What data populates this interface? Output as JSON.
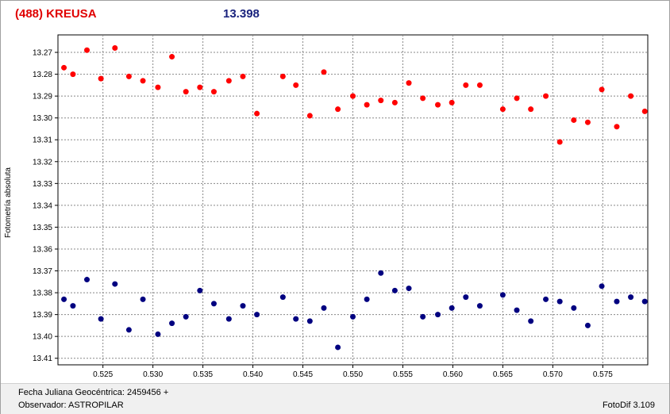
{
  "header": {
    "object_name": "(488) KREUSA",
    "mean_magnitude": "13.398"
  },
  "footer": {
    "jd_label": "Fecha Juliana Geocéntrica: 2459456 +",
    "observer_label": "Observador: ASTROPILAR",
    "software": "FotoDif 3.109"
  },
  "chart_data": {
    "type": "scatter",
    "title": "",
    "xlabel": "",
    "ylabel": "Fotometría absoluta",
    "xlim": [
      0.5205,
      0.5795
    ],
    "ylim": [
      13.262,
      13.413
    ],
    "y_inverted": true,
    "grid": true,
    "x_ticks": [
      "0.525",
      "0.530",
      "0.535",
      "0.540",
      "0.545",
      "0.550",
      "0.555",
      "0.560",
      "0.565",
      "0.570",
      "0.575"
    ],
    "y_ticks": [
      "13.27",
      "13.28",
      "13.29",
      "13.30",
      "13.31",
      "13.32",
      "13.33",
      "13.34",
      "13.35",
      "13.36",
      "13.37",
      "13.38",
      "13.39",
      "13.40",
      "13.41"
    ],
    "series": [
      {
        "color": "#ff0000",
        "x": [
          0.5211,
          0.522,
          0.5234,
          0.5248,
          0.5262,
          0.5276,
          0.529,
          0.5305,
          0.5319,
          0.5333,
          0.5347,
          0.5361,
          0.5376,
          0.539,
          0.5404,
          0.543,
          0.5443,
          0.5457,
          0.5471,
          0.5485,
          0.55,
          0.5514,
          0.5528,
          0.5542,
          0.5556,
          0.557,
          0.5585,
          0.5599,
          0.5613,
          0.5627,
          0.565,
          0.5664,
          0.5678,
          0.5693,
          0.5707,
          0.5721,
          0.5735,
          0.5749,
          0.5764,
          0.5778,
          0.5792
        ],
        "y": [
          13.277,
          13.28,
          13.269,
          13.282,
          13.268,
          13.281,
          13.283,
          13.286,
          13.272,
          13.288,
          13.286,
          13.288,
          13.283,
          13.281,
          13.298,
          13.281,
          13.285,
          13.299,
          13.279,
          13.296,
          13.29,
          13.294,
          13.292,
          13.293,
          13.284,
          13.291,
          13.294,
          13.293,
          13.285,
          13.285,
          13.296,
          13.291,
          13.296,
          13.29,
          13.311,
          13.301,
          13.302,
          13.287,
          13.304,
          13.29,
          13.297
        ]
      },
      {
        "color": "#000080",
        "x": [
          0.5211,
          0.522,
          0.5234,
          0.5248,
          0.5262,
          0.5276,
          0.529,
          0.5305,
          0.5319,
          0.5333,
          0.5347,
          0.5361,
          0.5376,
          0.539,
          0.5404,
          0.543,
          0.5443,
          0.5457,
          0.5471,
          0.5485,
          0.55,
          0.5514,
          0.5528,
          0.5542,
          0.5556,
          0.557,
          0.5585,
          0.5599,
          0.5613,
          0.5627,
          0.565,
          0.5664,
          0.5678,
          0.5693,
          0.5707,
          0.5721,
          0.5735,
          0.5749,
          0.5764,
          0.5778,
          0.5792
        ],
        "y": [
          13.383,
          13.386,
          13.374,
          13.392,
          13.376,
          13.397,
          13.383,
          13.399,
          13.394,
          13.391,
          13.379,
          13.385,
          13.392,
          13.386,
          13.39,
          13.382,
          13.392,
          13.393,
          13.387,
          13.405,
          13.391,
          13.383,
          13.371,
          13.379,
          13.378,
          13.391,
          13.39,
          13.387,
          13.382,
          13.386,
          13.381,
          13.388,
          13.393,
          13.383,
          13.384,
          13.387,
          13.395,
          13.377,
          13.384,
          13.382,
          13.384
        ]
      }
    ]
  }
}
